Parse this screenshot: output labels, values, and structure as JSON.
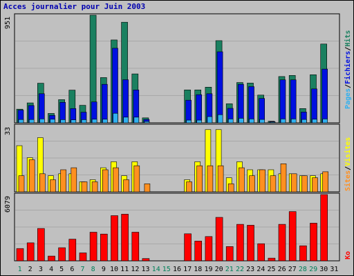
{
  "chart_data": {
    "type": "bar",
    "title": "Acces journalier pour Juin 2003",
    "x": [
      "1",
      "2",
      "3",
      "4",
      "5",
      "6",
      "7",
      "8",
      "9",
      "10",
      "11",
      "12",
      "13",
      "14",
      "15",
      "16",
      "17",
      "18",
      "19",
      "20",
      "21",
      "22",
      "23",
      "24",
      "25",
      "26",
      "27",
      "28",
      "29",
      "30",
      "31"
    ],
    "weekend_days": [
      "1",
      "7",
      "8",
      "14",
      "15",
      "21",
      "22",
      "28",
      "29"
    ],
    "weekend_color": "#00805a",
    "panels": [
      {
        "id": "hits",
        "ymax_label": "951",
        "ylim": [
          0,
          951
        ],
        "series": [
          {
            "name": "Hits",
            "color": "#1a8060",
            "values": [
              121,
              176,
              350,
              83,
              205,
              289,
              155,
              951,
              400,
              732,
              889,
              432,
              44,
              0,
              0,
              0,
              291,
              291,
              315,
              726,
              168,
              356,
              351,
              245,
              14,
              409,
              419,
              126,
              425,
              696,
              0
            ]
          },
          {
            "name": "Fichiers",
            "color": "#0010e0",
            "values": [
              112,
              153,
              257,
              65,
              181,
              126,
              94,
              185,
              340,
              659,
              381,
              291,
              30,
              0,
              0,
              0,
              200,
              249,
              257,
              628,
              128,
              340,
              320,
              215,
              10,
              380,
              380,
              95,
              300,
              475,
              0
            ]
          },
          {
            "name": "Pages",
            "color": "#30b0f0",
            "values": [
              29,
              29,
              35,
              32,
              28,
              26,
              28,
              32,
              32,
              84,
              50,
              50,
              12,
              0,
              0,
              0,
              24,
              24,
              55,
              72,
              34,
              40,
              34,
              30,
              4,
              34,
              34,
              30,
              32,
              34,
              0
            ]
          }
        ]
      },
      {
        "id": "visits",
        "ymax_label": "33",
        "ylim": [
          0,
          33
        ],
        "series": [
          {
            "name": "Visites",
            "color": "#ffff00",
            "values": [
              23,
              17,
              27,
              8,
              9,
              9,
              5,
              6,
              12,
              15,
              8,
              15,
              0,
              0,
              0,
              0,
              6,
              15,
              31,
              31,
              7,
              15,
              11,
              11,
              11,
              9,
              9,
              8,
              8,
              9,
              0
            ]
          },
          {
            "name": "Sites",
            "color": "#ff9020",
            "values": [
              8,
              16,
              9,
              6,
              11,
              12,
              5,
              5,
              11,
              12,
              6,
              13,
              4,
              0,
              0,
              0,
              5,
              13,
              13,
              13,
              4,
              12,
              8,
              11,
              8,
              14,
              9,
              8,
              7,
              10,
              0
            ]
          }
        ]
      },
      {
        "id": "kb",
        "ymax_label": "6079",
        "ylim": [
          0,
          6079
        ],
        "series": [
          {
            "name": "Ko",
            "color": "#ff0000",
            "values": [
              1130,
              1650,
              2970,
              440,
              1200,
              1990,
              730,
              2630,
              2460,
              4150,
              4280,
              2630,
              210,
              0,
              0,
              0,
              2480,
              1810,
              2230,
              3990,
              1310,
              3350,
              3270,
              1570,
              250,
              3350,
              4520,
              1380,
              3460,
              6079,
              0
            ]
          }
        ]
      }
    ],
    "legend": {
      "top": [
        {
          "label": "Pages",
          "color": "#30b0f0"
        },
        {
          "label": "Fichiers",
          "color": "#0010e0"
        },
        {
          "label": "Hits",
          "color": "#1a8060"
        }
      ],
      "middle": [
        {
          "label": "Sites",
          "color": "#ff9020"
        },
        {
          "label": "Visites",
          "color": "#ffff00"
        }
      ],
      "bottom": [
        {
          "label": "Ko",
          "color": "#ff0000"
        }
      ],
      "separator": "/"
    }
  }
}
